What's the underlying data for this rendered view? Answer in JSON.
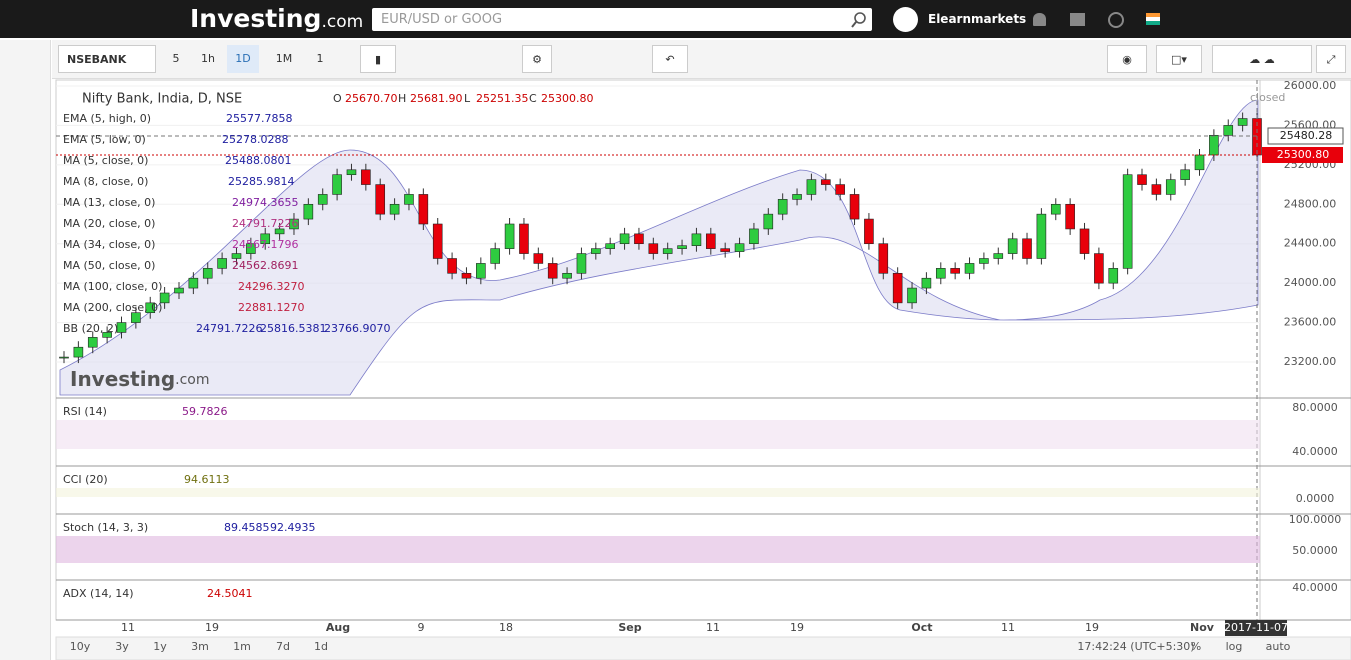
{
  "header": {
    "logo": "Investing",
    "logo_suffix": ".com",
    "search_placeholder": "EUR/USD or GOOG",
    "user": "Elearnmarkets"
  },
  "toolbar": {
    "symbol": "NSEBANK",
    "intervals": [
      "5",
      "1h",
      "1D",
      "1M",
      "1"
    ]
  },
  "legend": {
    "title": "Nifty Bank, India, D, NSE",
    "ohlc": [
      "O",
      "25670.70",
      "H",
      "25681.90",
      "L",
      "25251.35",
      "C",
      "25300.80"
    ],
    "studies": [
      {
        "name": "EMA (5, high, 0)",
        "values": [
          "25577.7858"
        ]
      },
      {
        "name": "EMA (5, low, 0)",
        "values": [
          "25278.0288"
        ]
      },
      {
        "name": "MA (5, close, 0)",
        "values": [
          "25488.0801"
        ]
      },
      {
        "name": "MA (8, close, 0)",
        "values": [
          "25285.9814"
        ]
      },
      {
        "name": "MA (13, close, 0)",
        "values": [
          "24974.3655"
        ]
      },
      {
        "name": "MA (20, close, 0)",
        "values": [
          "24791.7226"
        ]
      },
      {
        "name": "MA (34, close, 0)",
        "values": [
          "24567.1796"
        ]
      },
      {
        "name": "MA (50, close, 0)",
        "values": [
          "24562.8691"
        ]
      },
      {
        "name": "MA (100, close, 0)",
        "values": [
          "24296.3270"
        ]
      },
      {
        "name": "MA (200, close, 0)",
        "values": [
          "22881.1270"
        ]
      },
      {
        "name": "BB (20, 2)",
        "values": [
          "24791.7226",
          "25816.5381",
          "23766.9070"
        ]
      }
    ],
    "status": "closed",
    "watermark": "Investing",
    "watermark_suffix": ".com"
  },
  "price_axis": {
    "ticks": [
      {
        "value": 26000,
        "label": "26000.00"
      },
      {
        "value": 25600,
        "label": "25600.00"
      },
      {
        "value": 25200,
        "label": "25200.00"
      },
      {
        "value": 24800,
        "label": "24800.00"
      },
      {
        "value": 24400,
        "label": "24400.00"
      },
      {
        "value": 24000,
        "label": "24000.00"
      },
      {
        "value": 23600,
        "label": "23600.00"
      },
      {
        "value": 23200,
        "label": "23200.00"
      }
    ],
    "badges": [
      "25480.28",
      "25300.80"
    ]
  },
  "candles": {
    "close": [
      23250,
      23350,
      23450,
      23500,
      23600,
      23700,
      23800,
      23900,
      23950,
      24050,
      24150,
      24250,
      24300,
      24400,
      24500,
      24550,
      24650,
      24800,
      24900,
      25100,
      25150,
      25000,
      24700,
      24800,
      24900,
      24600,
      24250,
      24100,
      24050,
      24200,
      24350,
      24600,
      24300,
      24200,
      24050,
      24100,
      24300,
      24350,
      24400,
      24500,
      24400,
      24300,
      24350,
      24380,
      24500,
      24350,
      24320,
      24400,
      24550,
      24700,
      24850,
      24900,
      25050,
      25000,
      24900,
      24650,
      24400,
      24100,
      23800,
      23950,
      24050,
      24150,
      24100,
      24200,
      24250,
      24300,
      24450,
      24250,
      24700,
      24800,
      24550,
      24300,
      24000,
      24150,
      25100,
      25000,
      24900,
      25050,
      25150,
      25300,
      25500,
      25600,
      25670,
      25300
    ]
  },
  "indicators": [
    {
      "name": "RSI (14)",
      "values": [
        "59.7826"
      ],
      "ticks": [
        "80.0000",
        "40.0000"
      ]
    },
    {
      "name": "CCI (20)",
      "values": [
        "94.6113"
      ],
      "ticks": [
        "0.0000"
      ]
    },
    {
      "name": "Stoch (14, 3, 3)",
      "values": [
        "89.4585",
        "92.4935"
      ],
      "ticks": [
        "100.0000",
        "50.0000"
      ]
    },
    {
      "name": "ADX (14, 14)",
      "values": [
        "24.5041"
      ],
      "ticks": [
        "40.0000"
      ]
    }
  ],
  "time_axis": {
    "labels": [
      "11",
      "19",
      "Aug",
      "9",
      "18",
      "Sep",
      "11",
      "19",
      "Oct",
      "11",
      "19",
      "Nov"
    ],
    "cursor": "2017-11-07"
  },
  "footer": {
    "ranges": [
      "10y",
      "3y",
      "1y",
      "3m",
      "1m",
      "7d",
      "1d"
    ],
    "clock": "17:42:24 (UTC+5:30)",
    "options": [
      "%",
      "log",
      "auto"
    ]
  }
}
